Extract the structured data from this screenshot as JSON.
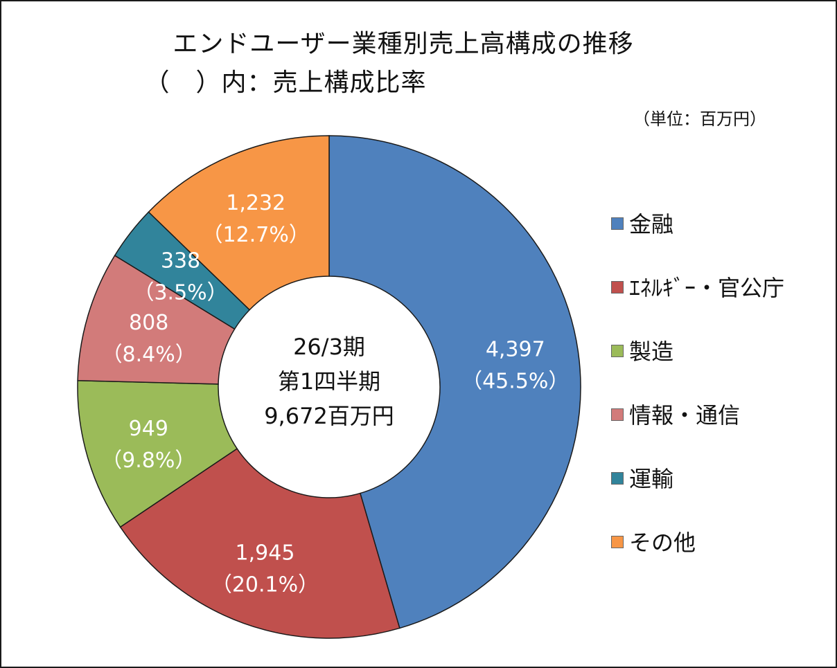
{
  "header": {
    "title": "エンドユーザー業種別売上高構成の推移",
    "subtitle": "（　）内：売上構成比率",
    "unit": "（単位：百万円）"
  },
  "center": {
    "line1": "26/3期",
    "line2": "第1四半期",
    "line3": "9,672百万円"
  },
  "chart_data": {
    "type": "pie",
    "donut": true,
    "total": 9672,
    "slices": [
      {
        "name": "金融",
        "value": 4397,
        "value_label": "4,397",
        "pct_label": "（45.5%）",
        "color": "#4F81BD"
      },
      {
        "name": "ｴﾈﾙｷﾞｰ・官公庁",
        "value": 1945,
        "value_label": "1,945",
        "pct_label": "（20.1%）",
        "color": "#C0504D"
      },
      {
        "name": "製造",
        "value": 949,
        "value_label": "949",
        "pct_label": "（9.8%）",
        "color": "#9BBB59"
      },
      {
        "name": "情報・通信",
        "value": 808,
        "value_label": "808",
        "pct_label": "（8.4%）",
        "color": "#D27B7A"
      },
      {
        "name": "運輸",
        "value": 338,
        "value_label": "338",
        "pct_label": "（3.5%）",
        "color": "#31849B"
      },
      {
        "name": "その他",
        "value": 1232,
        "value_label": "1,232",
        "pct_label": "（12.7%）",
        "color": "#F79646"
      }
    ],
    "legend_position": "right"
  }
}
